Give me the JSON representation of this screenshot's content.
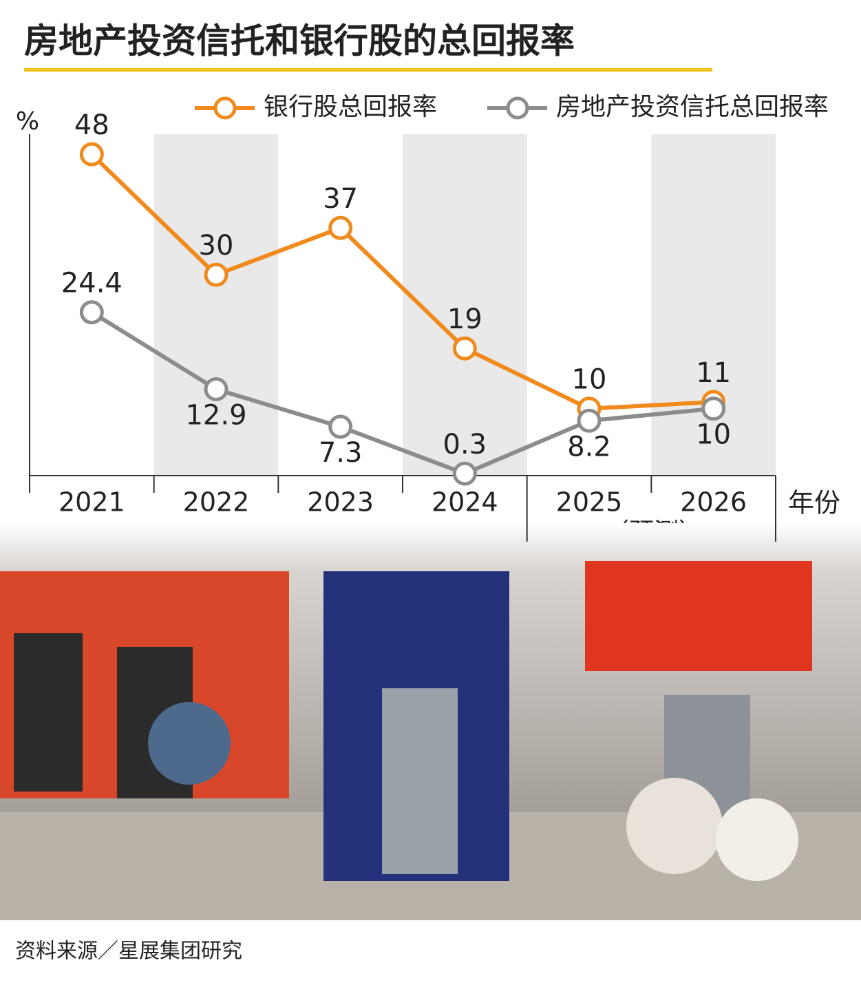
{
  "chart_data": {
    "type": "line",
    "title": "房地产投资信托和银行股的总回报率",
    "y_label": "%",
    "x_label": "年份",
    "forecast_note": "（预测）",
    "source": "资料来源／星展集团研究",
    "categories": [
      "2021",
      "2022",
      "2023",
      "2024",
      "2025",
      "2026"
    ],
    "series": [
      {
        "name": "银行股总回报率",
        "color": "#f08a1c",
        "values": [
          48,
          30,
          37,
          19,
          10,
          11
        ]
      },
      {
        "name": "房地产投资信托总回报率",
        "color": "#8c8c8c",
        "values": [
          24.4,
          12.9,
          7.3,
          0.3,
          8.2,
          10
        ]
      }
    ],
    "ylim": [
      0,
      51
    ],
    "band_color": "#e9e9e9"
  }
}
